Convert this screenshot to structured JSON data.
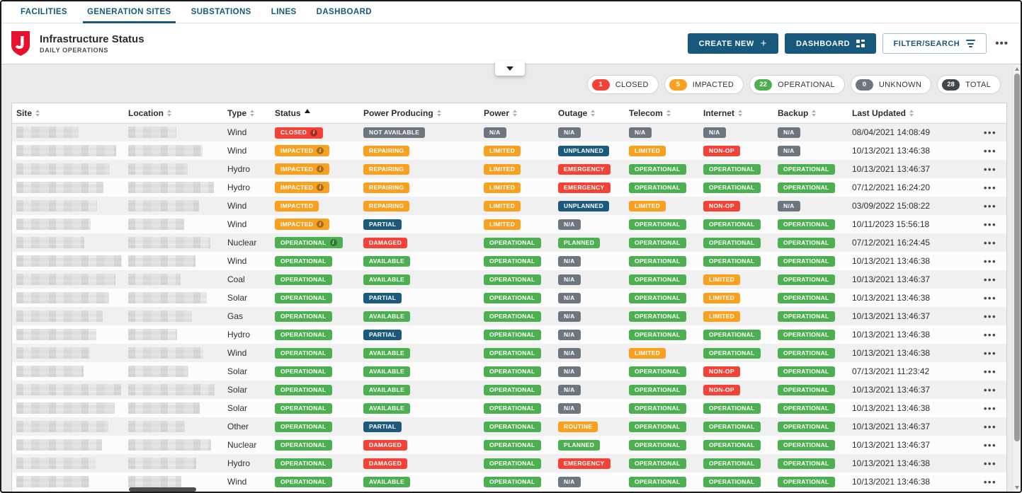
{
  "nav": {
    "tabs": [
      {
        "label": "FACILITIES",
        "active": false
      },
      {
        "label": "GENERATION SITES",
        "active": true
      },
      {
        "label": "SUBSTATIONS",
        "active": false
      },
      {
        "label": "LINES",
        "active": false
      },
      {
        "label": "DASHBOARD",
        "active": false
      }
    ]
  },
  "header": {
    "title": "Infrastructure Status",
    "subtitle": "DAILY OPERATIONS",
    "create_button": "CREATE NEW",
    "dashboard_button": "DASHBOARD",
    "filter_button": "FILTER/SEARCH",
    "more_menu": "..."
  },
  "summary": {
    "items": [
      {
        "count": "1",
        "label": "CLOSED",
        "color": "#f44336"
      },
      {
        "count": "5",
        "label": "IMPACTED",
        "color": "#f9a11e"
      },
      {
        "count": "22",
        "label": "OPERATIONAL",
        "color": "#4caf50"
      },
      {
        "count": "0",
        "label": "UNKNOWN",
        "color": "#6d767e"
      },
      {
        "count": "28",
        "label": "TOTAL",
        "color": "#40474c"
      }
    ]
  },
  "colors": {
    "accent_teal": "#17587c",
    "badge_green": "#4caf50",
    "badge_red": "#f44336",
    "badge_orange": "#f9a11e",
    "badge_gray": "#6d767e",
    "badge_blue": "#1b5a7d"
  },
  "badge_styles": {
    "OPERATIONAL": "green",
    "AVAILABLE": "green",
    "PLANNED": "green",
    "CLOSED": "red",
    "DAMAGED": "red",
    "EMERGENCY": "red",
    "NON-OP": "red",
    "IMPACTED": "orange",
    "REPAIRING": "orange",
    "LIMITED": "orange",
    "ROUTINE": "orange",
    "N/A": "gray",
    "NOT AVAILABLE": "gray",
    "PARTIAL": "blue",
    "UNPLANNED": "blue"
  },
  "table": {
    "columns": [
      {
        "label": "Site",
        "sort": "none"
      },
      {
        "label": "Location",
        "sort": "none"
      },
      {
        "label": "Type",
        "sort": "none"
      },
      {
        "label": "Status",
        "sort": "asc"
      },
      {
        "label": "Power Producing",
        "sort": "none"
      },
      {
        "label": "Power",
        "sort": "none"
      },
      {
        "label": "Outage",
        "sort": "none"
      },
      {
        "label": "Telecom",
        "sort": "none"
      },
      {
        "label": "Internet",
        "sort": "none"
      },
      {
        "label": "Backup",
        "sort": "none"
      },
      {
        "label": "Last Updated",
        "sort": "none"
      }
    ],
    "rows": [
      {
        "type": "Wind",
        "status": "CLOSED",
        "status_info": true,
        "power_producing": "NOT AVAILABLE",
        "power": "N/A",
        "outage": "N/A",
        "telecom": "N/A",
        "internet": "N/A",
        "backup": "N/A",
        "last_updated": "08/04/2021 14:08:49"
      },
      {
        "type": "Wind",
        "status": "IMPACTED",
        "status_info": true,
        "power_producing": "REPAIRING",
        "power": "LIMITED",
        "outage": "UNPLANNED",
        "telecom": "LIMITED",
        "internet": "NON-OP",
        "backup": "N/A",
        "last_updated": "10/13/2021 13:46:38"
      },
      {
        "type": "Hydro",
        "status": "IMPACTED",
        "status_info": true,
        "power_producing": "REPAIRING",
        "power": "LIMITED",
        "outage": "EMERGENCY",
        "telecom": "OPERATIONAL",
        "internet": "OPERATIONAL",
        "backup": "OPERATIONAL",
        "last_updated": "10/13/2021 13:46:37"
      },
      {
        "type": "Hydro",
        "status": "IMPACTED",
        "status_info": true,
        "power_producing": "REPAIRING",
        "power": "LIMITED",
        "outage": "EMERGENCY",
        "telecom": "OPERATIONAL",
        "internet": "OPERATIONAL",
        "backup": "OPERATIONAL",
        "last_updated": "07/12/2021 16:24:20"
      },
      {
        "type": "Wind",
        "status": "IMPACTED",
        "status_info": false,
        "power_producing": "REPAIRING",
        "power": "LIMITED",
        "outage": "UNPLANNED",
        "telecom": "LIMITED",
        "internet": "NON-OP",
        "backup": "N/A",
        "last_updated": "03/09/2022 15:08:22"
      },
      {
        "type": "Wind",
        "status": "IMPACTED",
        "status_info": true,
        "power_producing": "PARTIAL",
        "power": "LIMITED",
        "outage": "N/A",
        "telecom": "OPERATIONAL",
        "internet": "OPERATIONAL",
        "backup": "OPERATIONAL",
        "last_updated": "10/11/2023 15:56:18"
      },
      {
        "type": "Nuclear",
        "status": "OPERATIONAL",
        "status_info": true,
        "power_producing": "DAMAGED",
        "power": "OPERATIONAL",
        "outage": "PLANNED",
        "telecom": "OPERATIONAL",
        "internet": "OPERATIONAL",
        "backup": "OPERATIONAL",
        "last_updated": "07/12/2021 16:24:45"
      },
      {
        "type": "Wind",
        "status": "OPERATIONAL",
        "status_info": false,
        "power_producing": "AVAILABLE",
        "power": "OPERATIONAL",
        "outage": "N/A",
        "telecom": "OPERATIONAL",
        "internet": "OPERATIONAL",
        "backup": "OPERATIONAL",
        "last_updated": "10/13/2021 13:46:38"
      },
      {
        "type": "Coal",
        "status": "OPERATIONAL",
        "status_info": false,
        "power_producing": "AVAILABLE",
        "power": "OPERATIONAL",
        "outage": "N/A",
        "telecom": "OPERATIONAL",
        "internet": "LIMITED",
        "backup": "OPERATIONAL",
        "last_updated": "10/13/2021 13:46:37"
      },
      {
        "type": "Solar",
        "status": "OPERATIONAL",
        "status_info": false,
        "power_producing": "PARTIAL",
        "power": "OPERATIONAL",
        "outage": "N/A",
        "telecom": "OPERATIONAL",
        "internet": "LIMITED",
        "backup": "OPERATIONAL",
        "last_updated": "10/13/2021 13:46:38"
      },
      {
        "type": "Gas",
        "status": "OPERATIONAL",
        "status_info": false,
        "power_producing": "AVAILABLE",
        "power": "OPERATIONAL",
        "outage": "N/A",
        "telecom": "OPERATIONAL",
        "internet": "LIMITED",
        "backup": "OPERATIONAL",
        "last_updated": "10/13/2021 13:46:37"
      },
      {
        "type": "Hydro",
        "status": "OPERATIONAL",
        "status_info": false,
        "power_producing": "PARTIAL",
        "power": "OPERATIONAL",
        "outage": "N/A",
        "telecom": "OPERATIONAL",
        "internet": "OPERATIONAL",
        "backup": "OPERATIONAL",
        "last_updated": "10/13/2021 13:46:38"
      },
      {
        "type": "Wind",
        "status": "OPERATIONAL",
        "status_info": false,
        "power_producing": "AVAILABLE",
        "power": "OPERATIONAL",
        "outage": "N/A",
        "telecom": "LIMITED",
        "internet": "OPERATIONAL",
        "backup": "OPERATIONAL",
        "last_updated": "10/13/2021 13:46:38"
      },
      {
        "type": "Solar",
        "status": "OPERATIONAL",
        "status_info": false,
        "power_producing": "AVAILABLE",
        "power": "OPERATIONAL",
        "outage": "N/A",
        "telecom": "OPERATIONAL",
        "internet": "NON-OP",
        "backup": "OPERATIONAL",
        "last_updated": "07/13/2021 11:23:42"
      },
      {
        "type": "Solar",
        "status": "OPERATIONAL",
        "status_info": false,
        "power_producing": "AVAILABLE",
        "power": "OPERATIONAL",
        "outage": "N/A",
        "telecom": "OPERATIONAL",
        "internet": "NON-OP",
        "backup": "OPERATIONAL",
        "last_updated": "10/13/2021 13:46:37"
      },
      {
        "type": "Solar",
        "status": "OPERATIONAL",
        "status_info": false,
        "power_producing": "AVAILABLE",
        "power": "OPERATIONAL",
        "outage": "N/A",
        "telecom": "OPERATIONAL",
        "internet": "OPERATIONAL",
        "backup": "OPERATIONAL",
        "last_updated": "10/13/2021 13:46:38"
      },
      {
        "type": "Other",
        "status": "OPERATIONAL",
        "status_info": false,
        "power_producing": "PARTIAL",
        "power": "OPERATIONAL",
        "outage": "ROUTINE",
        "telecom": "OPERATIONAL",
        "internet": "OPERATIONAL",
        "backup": "OPERATIONAL",
        "last_updated": "10/13/2021 13:46:37"
      },
      {
        "type": "Nuclear",
        "status": "OPERATIONAL",
        "status_info": false,
        "power_producing": "DAMAGED",
        "power": "OPERATIONAL",
        "outage": "PLANNED",
        "telecom": "OPERATIONAL",
        "internet": "OPERATIONAL",
        "backup": "OPERATIONAL",
        "last_updated": "10/13/2021 13:46:37"
      },
      {
        "type": "Hydro",
        "status": "OPERATIONAL",
        "status_info": false,
        "power_producing": "DAMAGED",
        "power": "OPERATIONAL",
        "outage": "EMERGENCY",
        "telecom": "OPERATIONAL",
        "internet": "OPERATIONAL",
        "backup": "OPERATIONAL",
        "last_updated": "10/13/2021 13:46:38"
      },
      {
        "type": "Wind",
        "status": "OPERATIONAL",
        "status_info": false,
        "power_producing": "AVAILABLE",
        "power": "OPERATIONAL",
        "outage": "N/A",
        "telecom": "OPERATIONAL",
        "internet": "OPERATIONAL",
        "backup": "OPERATIONAL",
        "last_updated": "10/13/2021 13:46:38"
      }
    ]
  }
}
